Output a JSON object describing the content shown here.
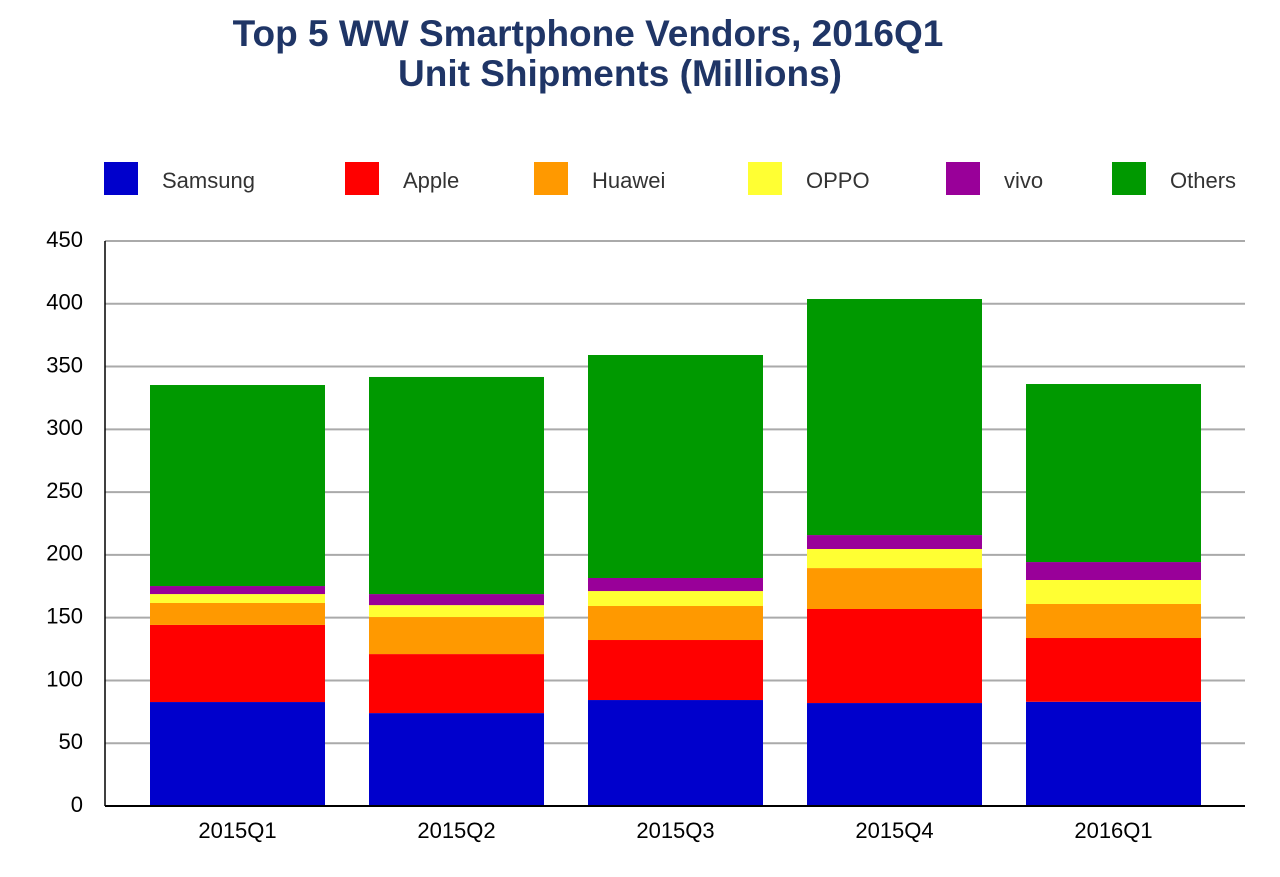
{
  "chart_data": {
    "type": "stacked_bar",
    "title": "Top 5 WW Smartphone Vendors, 2016Q1",
    "subtitle": "Unit Shipments (Millions)",
    "categories": [
      "2015Q1",
      "2015Q2",
      "2015Q3",
      "2015Q4",
      "2016Q1"
    ],
    "series": [
      {
        "name": "Samsung",
        "color": "#0000cc",
        "values": [
          82.8,
          74.0,
          84.4,
          82.0,
          83.0
        ]
      },
      {
        "name": "Apple",
        "color": "#ff0000",
        "values": [
          61.4,
          47.0,
          47.8,
          74.9,
          50.8
        ]
      },
      {
        "name": "Huawei",
        "color": "#ff9900",
        "values": [
          17.5,
          29.5,
          27.1,
          32.6,
          27.1
        ]
      },
      {
        "name": "OPPO",
        "color": "#ffff33",
        "values": [
          7.1,
          9.5,
          11.9,
          15.2,
          19.1
        ]
      },
      {
        "name": "vivo",
        "color": "#990099",
        "values": [
          6.4,
          8.8,
          10.4,
          11.1,
          14.3
        ]
      },
      {
        "name": "Others",
        "color": "#009900",
        "values": [
          160.1,
          172.9,
          177.6,
          188.0,
          141.8
        ]
      }
    ],
    "ylim": [
      0,
      450
    ],
    "yticks": [
      0,
      50,
      100,
      150,
      200,
      250,
      300,
      350,
      400,
      450
    ],
    "grid": true
  }
}
